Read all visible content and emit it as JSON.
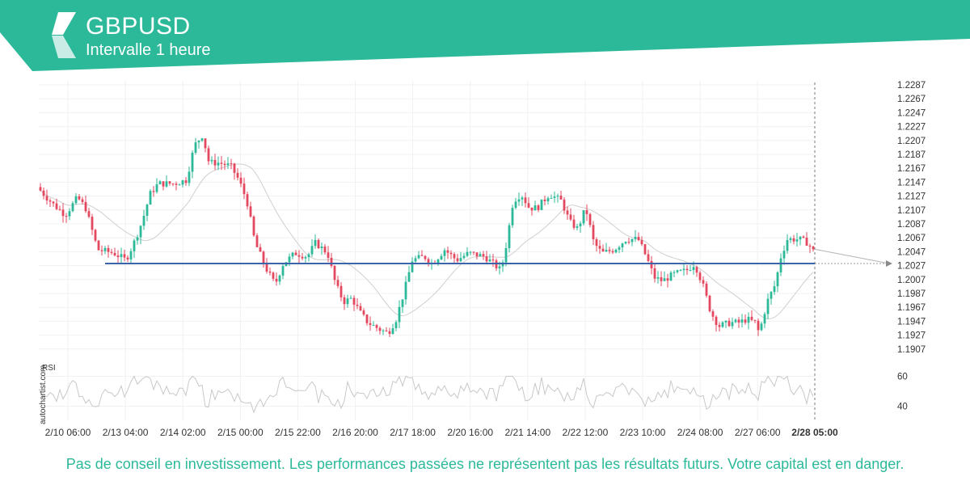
{
  "header": {
    "symbol": "GBPUSD",
    "interval": "Intervalle 1 heure",
    "brand_color": "#2bb99a"
  },
  "watermark": "autochartist.com",
  "rsi_label": "RSI",
  "disclaimer": "Pas de conseil en investissement. Les performances passées ne représentent pas les résultats futurs. Votre capital est en danger.",
  "colors": {
    "up": "#2bb99a",
    "down": "#e3485f",
    "support_line": "#3c64a8",
    "moving_average": "#cfcfcf",
    "rsi_line": "#c8c8c8",
    "grid": "#f1f1f1"
  },
  "chart_data": {
    "type": "candlestick",
    "symbol": "GBPUSD",
    "interval": "1 heure",
    "y_ticks": [
      "1.2287",
      "1.2267",
      "1.2247",
      "1.2227",
      "1.2207",
      "1.2187",
      "1.2167",
      "1.2147",
      "1.2127",
      "1.2107",
      "1.2087",
      "1.2067",
      "1.2047",
      "1.2027",
      "1.2007",
      "1.1987",
      "1.1967",
      "1.1947",
      "1.1927",
      "1.1907"
    ],
    "ylim": [
      1.1897,
      1.2292
    ],
    "x_ticks": [
      "2/10 06:00",
      "2/13 04:00",
      "2/14 02:00",
      "2/15 00:00",
      "2/15 22:00",
      "2/16 20:00",
      "2/17 18:00",
      "2/20 16:00",
      "2/21 14:00",
      "2/22 12:00",
      "2/23 10:00",
      "2/24 08:00",
      "2/27 06:00"
    ],
    "x_current": "2/28 05:00",
    "support_level": 1.203,
    "price_path": [
      [
        0,
        1.214
      ],
      [
        20,
        1.2115
      ],
      [
        35,
        1.21
      ],
      [
        50,
        1.2125
      ],
      [
        60,
        1.211
      ],
      [
        75,
        1.205
      ],
      [
        95,
        1.2045
      ],
      [
        110,
        1.2035
      ],
      [
        120,
        1.206
      ],
      [
        130,
        1.209
      ],
      [
        140,
        1.213
      ],
      [
        150,
        1.2145
      ],
      [
        170,
        1.2145
      ],
      [
        185,
        1.215
      ],
      [
        195,
        1.22
      ],
      [
        205,
        1.2215
      ],
      [
        213,
        1.2175
      ],
      [
        225,
        1.2175
      ],
      [
        240,
        1.217
      ],
      [
        250,
        1.215
      ],
      [
        260,
        1.212
      ],
      [
        270,
        1.206
      ],
      [
        285,
        1.202
      ],
      [
        295,
        1.2
      ],
      [
        305,
        1.203
      ],
      [
        320,
        1.2045
      ],
      [
        335,
        1.204
      ],
      [
        345,
        1.206
      ],
      [
        360,
        1.2045
      ],
      [
        370,
        1.2
      ],
      [
        380,
        1.1975
      ],
      [
        390,
        1.198
      ],
      [
        400,
        1.196
      ],
      [
        410,
        1.1945
      ],
      [
        425,
        1.1935
      ],
      [
        435,
        1.193
      ],
      [
        445,
        1.195
      ],
      [
        455,
        1.199
      ],
      [
        465,
        1.2035
      ],
      [
        480,
        1.204
      ],
      [
        490,
        1.203
      ],
      [
        505,
        1.205
      ],
      [
        520,
        1.2035
      ],
      [
        535,
        1.2045
      ],
      [
        555,
        1.204
      ],
      [
        565,
        1.203
      ],
      [
        575,
        1.202
      ],
      [
        582,
        1.206
      ],
      [
        590,
        1.212
      ],
      [
        600,
        1.213
      ],
      [
        610,
        1.211
      ],
      [
        620,
        1.211
      ],
      [
        635,
        1.213
      ],
      [
        650,
        1.212
      ],
      [
        660,
        1.209
      ],
      [
        670,
        1.208
      ],
      [
        680,
        1.211
      ],
      [
        690,
        1.206
      ],
      [
        700,
        1.2045
      ],
      [
        715,
        1.205
      ],
      [
        730,
        1.2065
      ],
      [
        745,
        1.2065
      ],
      [
        755,
        1.204
      ],
      [
        765,
        1.201
      ],
      [
        775,
        1.2005
      ],
      [
        790,
        1.2015
      ],
      [
        805,
        1.202
      ],
      [
        815,
        1.203
      ],
      [
        825,
        1.2
      ],
      [
        835,
        1.196
      ],
      [
        845,
        1.194
      ],
      [
        860,
        1.1945
      ],
      [
        870,
        1.1945
      ],
      [
        880,
        1.195
      ],
      [
        890,
        1.1945
      ],
      [
        895,
        1.193
      ],
      [
        905,
        1.1975
      ],
      [
        915,
        1.2
      ],
      [
        922,
        1.204
      ],
      [
        930,
        1.2065
      ],
      [
        945,
        1.2065
      ],
      [
        955,
        1.206
      ],
      [
        962,
        1.2048
      ]
    ],
    "indicators": [
      "moving average",
      "RSI"
    ],
    "rsi_ticks": [
      60,
      40
    ],
    "rsi_ylim": [
      30,
      70
    ],
    "forecast_arrow": "right"
  }
}
